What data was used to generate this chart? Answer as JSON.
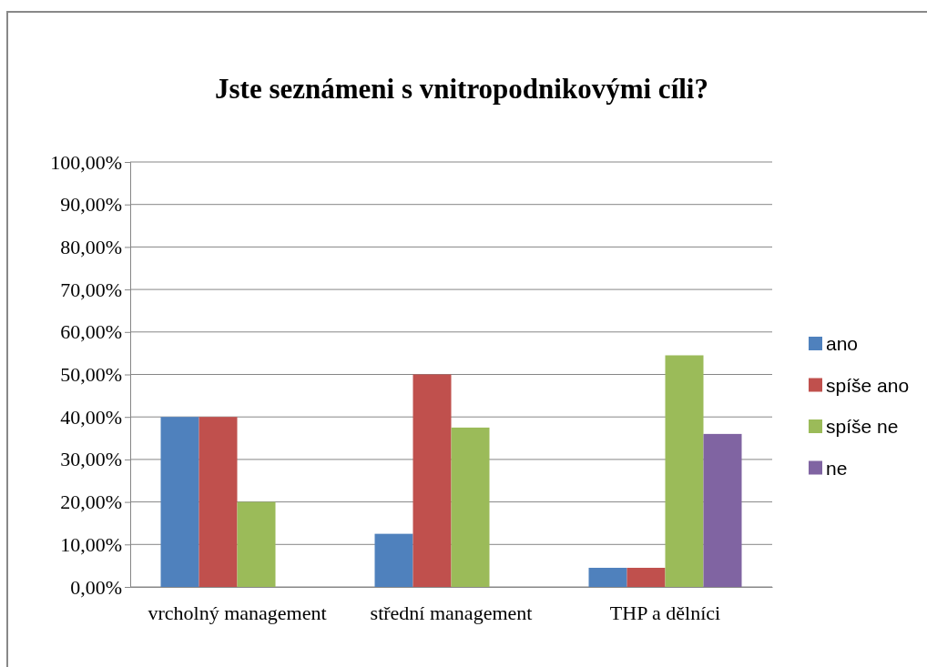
{
  "chart_data": {
    "type": "bar",
    "title": "Jste seznámeni s vnitropodnikovými cíli?",
    "categories": [
      "vrcholný management",
      "střední management",
      "THP a dělníci"
    ],
    "series": [
      {
        "name": "ano",
        "color": "#4f81bd",
        "values": [
          40,
          12.5,
          4.5
        ]
      },
      {
        "name": "spíše ano",
        "color": "#c0504d",
        "values": [
          40,
          50,
          4.5
        ]
      },
      {
        "name": "spíše ne",
        "color": "#9bbb59",
        "values": [
          20,
          37.5,
          54.5
        ]
      },
      {
        "name": "ne",
        "color": "#8064a2",
        "values": [
          0,
          0,
          36
        ]
      }
    ],
    "ylim": [
      0,
      100
    ],
    "yticks": [
      {
        "value": 0,
        "label": "0,00%"
      },
      {
        "value": 10,
        "label": "10,00%"
      },
      {
        "value": 20,
        "label": "20,00%"
      },
      {
        "value": 30,
        "label": "30,00%"
      },
      {
        "value": 40,
        "label": "40,00%"
      },
      {
        "value": 50,
        "label": "50,00%"
      },
      {
        "value": 60,
        "label": "60,00%"
      },
      {
        "value": 70,
        "label": "70,00%"
      },
      {
        "value": 80,
        "label": "80,00%"
      },
      {
        "value": 90,
        "label": "90,00%"
      },
      {
        "value": 100,
        "label": "100,00%"
      }
    ],
    "grid": "y",
    "legend": "right"
  }
}
